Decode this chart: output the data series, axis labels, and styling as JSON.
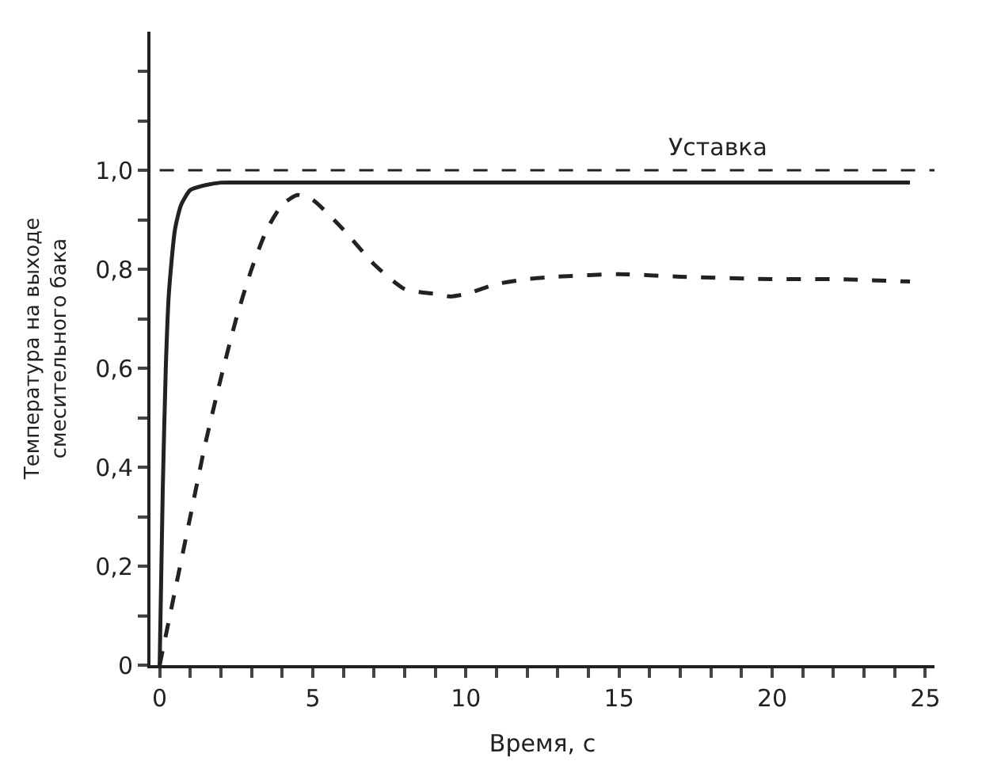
{
  "chart_data": {
    "type": "line",
    "xlabel": "Время, с",
    "ylabel": "Температура на выходе\nсмесительного бака",
    "xlim": [
      -0.3,
      25.3
    ],
    "ylim": [
      0,
      1.28
    ],
    "xticks": [
      0,
      {
        "value": 1,
        "label": null
      },
      {
        "value": 2,
        "label": null
      },
      {
        "value": 3,
        "label": null
      },
      {
        "value": 4,
        "label": null
      },
      5,
      {
        "value": 6,
        "label": null
      },
      {
        "value": 7,
        "label": null
      },
      {
        "value": 8,
        "label": null
      },
      {
        "value": 9,
        "label": null
      },
      10,
      {
        "value": 11,
        "label": null
      },
      {
        "value": 12,
        "label": null
      },
      {
        "value": 13,
        "label": null
      },
      {
        "value": 14,
        "label": null
      },
      15,
      {
        "value": 16,
        "label": null
      },
      {
        "value": 17,
        "label": null
      },
      {
        "value": 18,
        "label": null
      },
      {
        "value": 19,
        "label": null
      },
      20,
      {
        "value": 21,
        "label": null
      },
      {
        "value": 22,
        "label": null
      },
      {
        "value": 23,
        "label": null
      },
      {
        "value": 24,
        "label": null
      },
      25
    ],
    "yticks": [
      0,
      {
        "value": 0.1,
        "label": null
      },
      {
        "value": 0.2,
        "label": "0,2"
      },
      {
        "value": 0.3,
        "label": null
      },
      {
        "value": 0.4,
        "label": "0,4"
      },
      {
        "value": 0.5,
        "label": null
      },
      {
        "value": 0.6,
        "label": "0,6"
      },
      {
        "value": 0.7,
        "label": null
      },
      {
        "value": 0.8,
        "label": "0,8"
      },
      {
        "value": 0.9,
        "label": null
      },
      {
        "value": 1.0,
        "label": "1,0"
      },
      {
        "value": 1.1,
        "label": null
      },
      {
        "value": 1.2,
        "label": null
      }
    ],
    "marker": "none",
    "series": [
      {
        "color": "#222222",
        "line_style": "solid",
        "x": [
          0,
          0.1,
          0.2,
          0.3,
          0.5,
          0.7,
          1,
          1.5,
          2,
          3,
          5,
          10,
          15,
          20,
          24.5
        ],
        "values": [
          0,
          0.35,
          0.6,
          0.75,
          0.88,
          0.93,
          0.96,
          0.97,
          0.975,
          0.975,
          0.975,
          0.975,
          0.975,
          0.975,
          0.975
        ]
      },
      {
        "color": "#222222",
        "line_style": "dashed",
        "x": [
          0,
          0.5,
          1,
          1.5,
          2,
          2.5,
          3,
          3.5,
          4,
          4.5,
          5,
          6,
          7,
          8,
          9,
          9.5,
          10,
          11,
          12,
          13,
          15,
          17,
          20,
          22,
          24.5
        ],
        "values": [
          0,
          0.15,
          0.3,
          0.45,
          0.58,
          0.7,
          0.8,
          0.88,
          0.93,
          0.95,
          0.94,
          0.88,
          0.81,
          0.76,
          0.75,
          0.745,
          0.75,
          0.77,
          0.78,
          0.785,
          0.79,
          0.785,
          0.78,
          0.78,
          0.775
        ]
      }
    ],
    "ref_lines": [
      {
        "axis": "y",
        "value": 1.0,
        "label": "Уставка",
        "color": "#222222",
        "line_style": "dashed"
      }
    ]
  }
}
